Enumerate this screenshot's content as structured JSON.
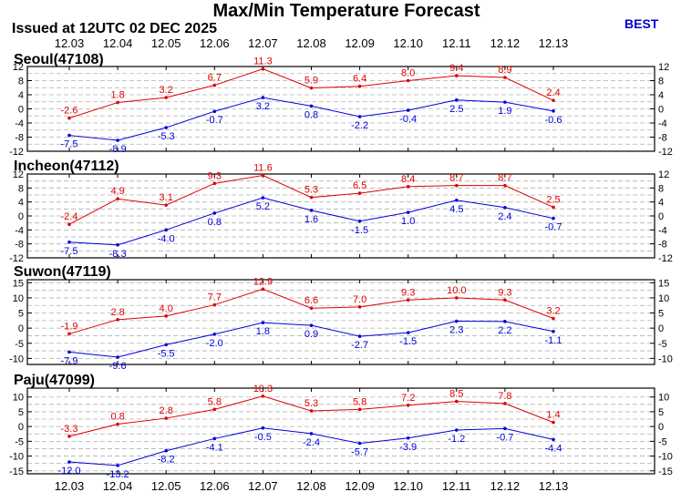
{
  "header": {
    "title": "Max/Min Temperature Forecast",
    "issued": "Issued at 12UTC 02 DEC 2025",
    "model": "BEST"
  },
  "colors": {
    "max": "#e00000",
    "min": "#0000dd",
    "grid": "#b0b0b0"
  },
  "chart_data": [
    {
      "type": "line",
      "title": "Seoul(47108)",
      "categories": [
        "12.03",
        "12.04",
        "12.05",
        "12.06",
        "12.07",
        "12.08",
        "12.09",
        "12.10",
        "12.11",
        "12.12",
        "12.13"
      ],
      "ylim": [
        -12,
        12
      ],
      "yticks": [
        -12,
        -8,
        -4,
        0,
        4,
        8,
        12
      ],
      "gridlines": [
        -10,
        -6,
        -2,
        2,
        6,
        10
      ],
      "grid": true,
      "series": [
        {
          "key": "max",
          "values": [
            -2.6,
            1.8,
            3.2,
            6.7,
            11.3,
            5.9,
            6.4,
            8.0,
            9.4,
            8.9,
            2.4
          ]
        },
        {
          "key": "min",
          "values": [
            -7.5,
            -8.9,
            -5.3,
            -0.7,
            3.2,
            0.8,
            -2.2,
            -0.4,
            2.5,
            1.9,
            -0.6
          ]
        }
      ]
    },
    {
      "type": "line",
      "title": "Incheon(47112)",
      "categories": [
        "12.03",
        "12.04",
        "12.05",
        "12.06",
        "12.07",
        "12.08",
        "12.09",
        "12.10",
        "12.11",
        "12.12",
        "12.13"
      ],
      "ylim": [
        -12,
        12
      ],
      "yticks": [
        -12,
        -8,
        -4,
        0,
        4,
        8,
        12
      ],
      "gridlines": [
        -10,
        -6,
        -2,
        2,
        6,
        10
      ],
      "grid": true,
      "series": [
        {
          "key": "max",
          "values": [
            -2.4,
            4.9,
            3.1,
            9.3,
            11.6,
            5.3,
            6.5,
            8.4,
            8.7,
            8.7,
            2.5
          ]
        },
        {
          "key": "min",
          "values": [
            -7.5,
            -8.3,
            -4.0,
            0.8,
            5.2,
            1.6,
            -1.5,
            1.0,
            4.5,
            2.4,
            -0.7
          ]
        }
      ]
    },
    {
      "type": "line",
      "title": "Suwon(47119)",
      "categories": [
        "12.03",
        "12.04",
        "12.05",
        "12.06",
        "12.07",
        "12.08",
        "12.09",
        "12.10",
        "12.11",
        "12.12",
        "12.13"
      ],
      "ylim": [
        -12,
        16
      ],
      "yticks": [
        -10,
        -5,
        0,
        5,
        10,
        15
      ],
      "gridlines": [
        -7.5,
        -2.5,
        2.5,
        7.5,
        12.5
      ],
      "grid": true,
      "series": [
        {
          "key": "max",
          "values": [
            -1.9,
            2.8,
            4.0,
            7.7,
            12.9,
            6.6,
            7.0,
            9.3,
            10.0,
            9.3,
            3.2
          ]
        },
        {
          "key": "min",
          "values": [
            -7.9,
            -9.6,
            -5.5,
            -2.0,
            1.8,
            0.9,
            -2.7,
            -1.5,
            2.3,
            2.2,
            -1.1
          ]
        }
      ]
    },
    {
      "type": "line",
      "title": "Paju(47099)",
      "categories": [
        "12.03",
        "12.04",
        "12.05",
        "12.06",
        "12.07",
        "12.08",
        "12.09",
        "12.10",
        "12.11",
        "12.12",
        "12.13"
      ],
      "ylim": [
        -16,
        13
      ],
      "yticks": [
        -15,
        -10,
        -5,
        0,
        5,
        10
      ],
      "gridlines": [
        -12.5,
        -7.5,
        -2.5,
        2.5,
        7.5
      ],
      "grid": true,
      "series": [
        {
          "key": "max",
          "values": [
            -3.3,
            0.8,
            2.8,
            5.8,
            10.3,
            5.3,
            5.8,
            7.2,
            8.5,
            7.8,
            1.4
          ]
        },
        {
          "key": "min",
          "values": [
            -12.0,
            -13.2,
            -8.2,
            -4.1,
            -0.5,
            -2.4,
            -5.7,
            -3.9,
            -1.2,
            -0.7,
            -4.4
          ]
        }
      ]
    }
  ]
}
